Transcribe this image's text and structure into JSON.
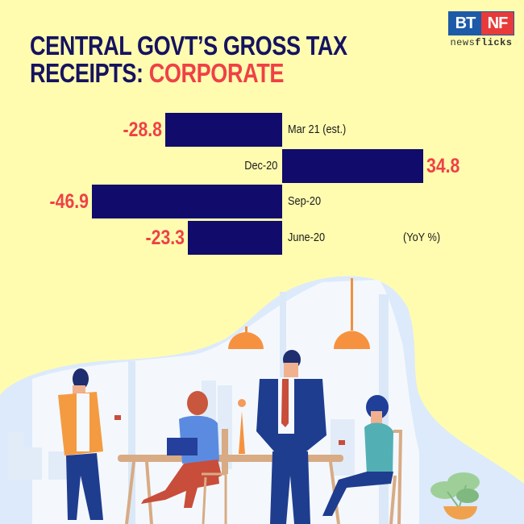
{
  "header": {
    "title_line1": "CENTRAL GOVT’S GROSS TAX",
    "title_line2_prefix": "RECEIPTS: ",
    "title_line2_accent": "CORPORATE"
  },
  "logo": {
    "left": "BT",
    "right": "NF",
    "sub_light": "news",
    "sub_bold": "flicks"
  },
  "unit_label": "(YoY %)",
  "colors": {
    "background": "#fffcb0",
    "title": "#15135f",
    "accent": "#ef4146",
    "bar": "#110b6b"
  },
  "chart_data": {
    "type": "bar",
    "orientation": "horizontal",
    "title": "Central Govt's Gross Tax Receipts: Corporate",
    "xlabel": "",
    "ylabel": "",
    "unit": "YoY %",
    "categories": [
      "Mar 21 (est.)",
      "Dec-20",
      "Sep-20",
      "June-20"
    ],
    "values": [
      -28.8,
      34.8,
      -46.9,
      -23.3
    ],
    "value_labels": [
      "-28.8",
      "34.8",
      "-46.9",
      "-23.3"
    ],
    "grid": false,
    "legend": null,
    "xlim": [
      -50,
      40
    ]
  }
}
